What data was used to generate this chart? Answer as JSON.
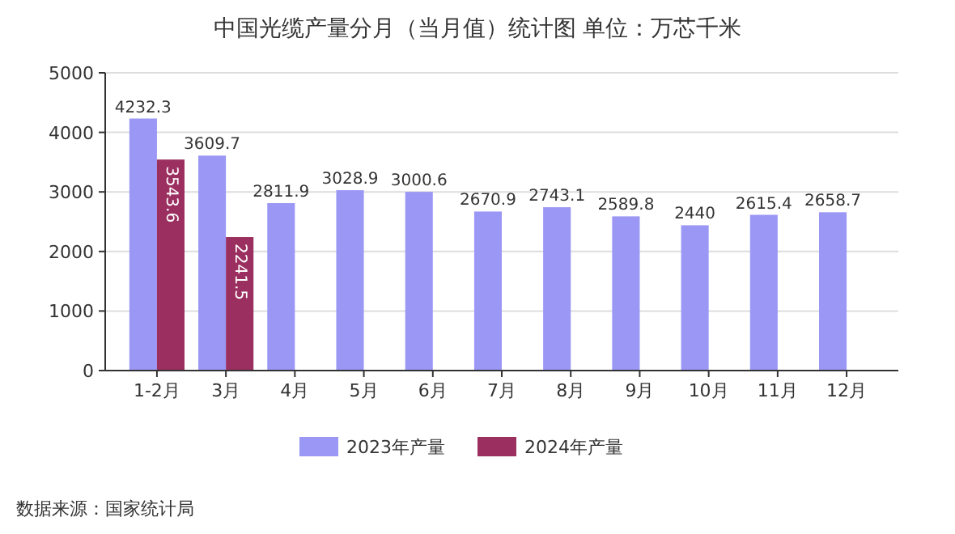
{
  "chart_data": {
    "type": "bar",
    "title": "中国光缆产量分月（当月值）统计图 单位：万芯千米",
    "categories": [
      "1-2月",
      "3月",
      "4月",
      "5月",
      "6月",
      "7月",
      "8月",
      "9月",
      "10月",
      "11月",
      "12月"
    ],
    "series": [
      {
        "name": "2023年产量",
        "color": "#9b97f5",
        "values": [
          4232.3,
          3609.7,
          2811.9,
          3028.9,
          3000.6,
          2670.9,
          2743.1,
          2589.8,
          2440,
          2615.4,
          2658.7
        ]
      },
      {
        "name": "2024年产量",
        "color": "#9b3060",
        "values": [
          3543.6,
          2241.5,
          null,
          null,
          null,
          null,
          null,
          null,
          null,
          null,
          null
        ]
      }
    ],
    "ylim": [
      0,
      5000
    ],
    "yticks": [
      0,
      1000,
      2000,
      3000,
      4000,
      5000
    ],
    "grid": "y",
    "legend": "bottom",
    "data_labels": true,
    "annotations": [
      "数据来源：国家统计局"
    ]
  }
}
